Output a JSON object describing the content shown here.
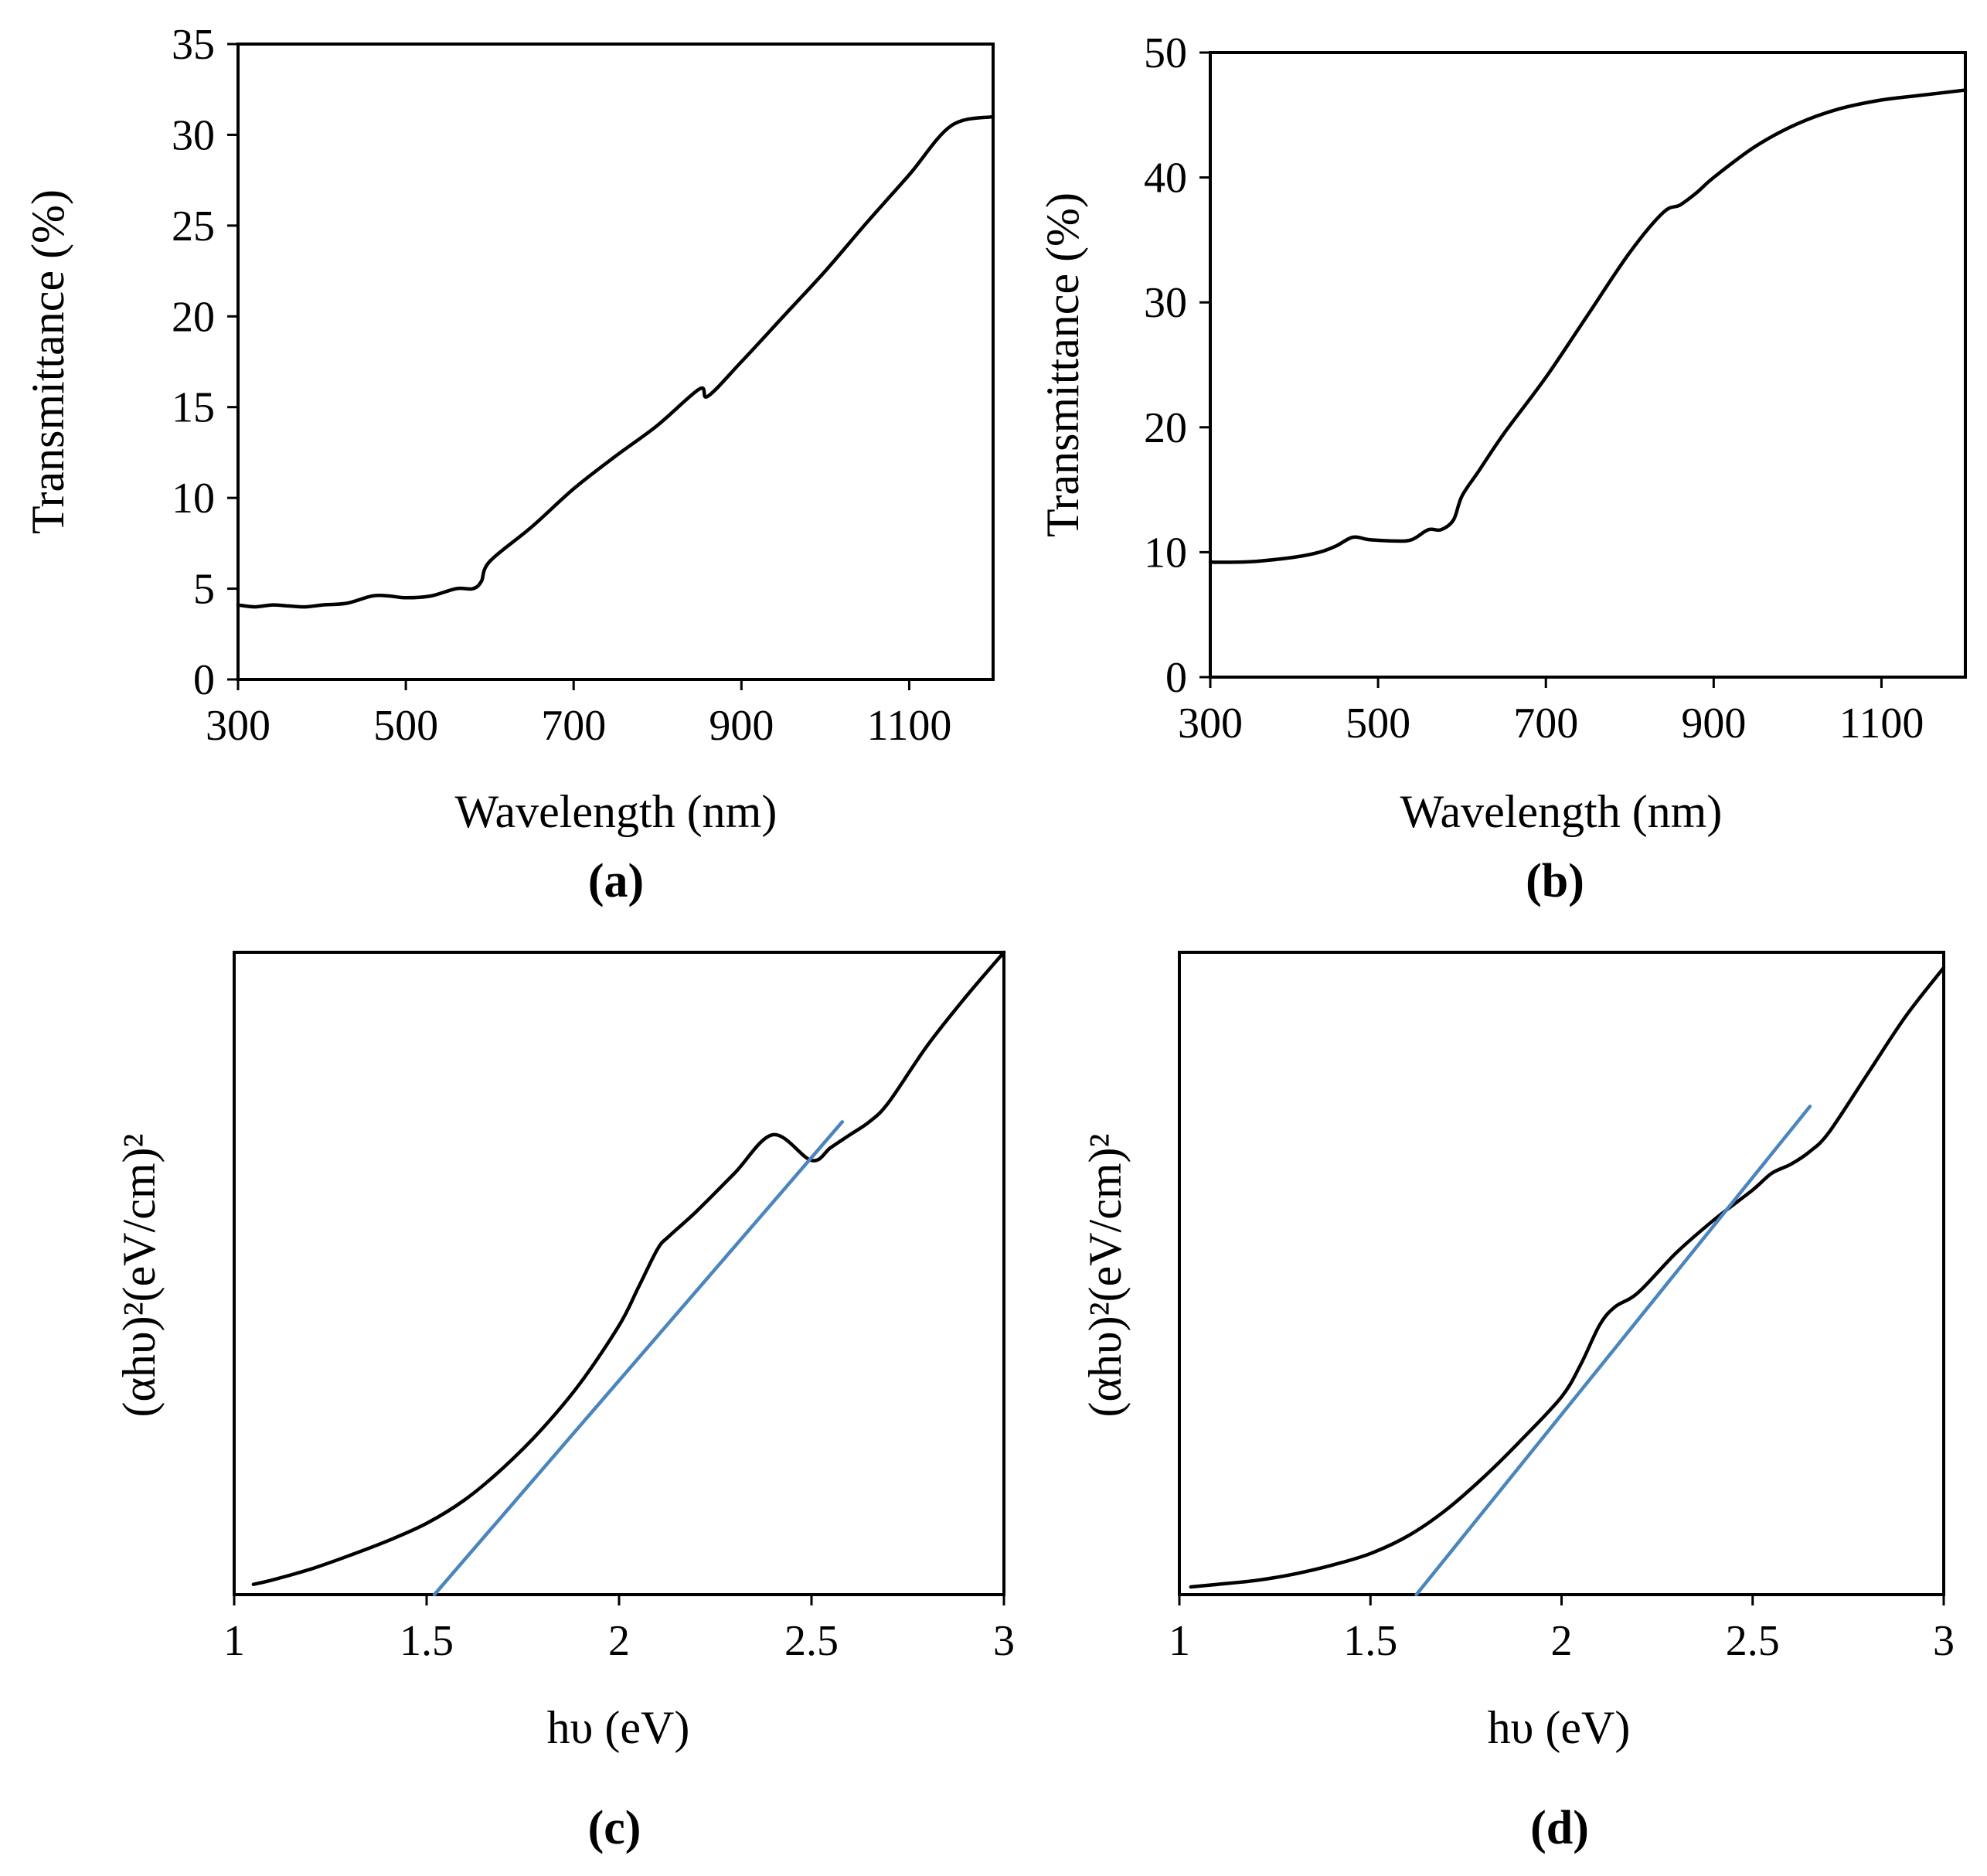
{
  "chart_data": [
    {
      "panel": "a",
      "panel_label": "(a)",
      "type": "line",
      "xlabel": "Wavelength (nm)",
      "ylabel": "Transmittance (%)",
      "xlim": [
        300,
        1200
      ],
      "ylim": [
        0,
        35
      ],
      "xticks": [
        300,
        500,
        700,
        900,
        1100
      ],
      "yticks": [
        0,
        5,
        10,
        15,
        20,
        25,
        30,
        35
      ],
      "series": [
        {
          "name": "Transmittance",
          "color": "#000000",
          "x": [
            300,
            320,
            340,
            360,
            380,
            400,
            430,
            460,
            480,
            500,
            530,
            560,
            580,
            590,
            600,
            650,
            700,
            750,
            800,
            850,
            860,
            900,
            950,
            1000,
            1050,
            1100,
            1150,
            1200
          ],
          "y": [
            4.1,
            4.0,
            4.1,
            4.05,
            4.0,
            4.1,
            4.2,
            4.6,
            4.6,
            4.5,
            4.6,
            5.0,
            5.0,
            5.4,
            6.5,
            8.4,
            10.5,
            12.3,
            14.0,
            16.0,
            15.6,
            17.5,
            20.0,
            22.5,
            25.2,
            27.8,
            30.5,
            31.0
          ]
        }
      ]
    },
    {
      "panel": "b",
      "panel_label": "(b)",
      "type": "line",
      "xlabel": "Wavelength (nm)",
      "ylabel": "Transmittance (%)",
      "xlim": [
        300,
        1200
      ],
      "ylim": [
        0,
        50
      ],
      "xticks": [
        300,
        500,
        700,
        900,
        1100
      ],
      "yticks": [
        0,
        10,
        20,
        30,
        40,
        50
      ],
      "series": [
        {
          "name": "Transmittance",
          "color": "#000000",
          "x": [
            300,
            330,
            360,
            400,
            430,
            450,
            470,
            490,
            520,
            540,
            560,
            575,
            590,
            600,
            620,
            650,
            700,
            750,
            800,
            840,
            860,
            880,
            900,
            950,
            1000,
            1050,
            1100,
            1150,
            1200
          ],
          "y": [
            9.2,
            9.2,
            9.3,
            9.6,
            10.0,
            10.5,
            11.2,
            11.0,
            10.9,
            11.0,
            11.8,
            11.8,
            12.6,
            14.5,
            16.5,
            19.5,
            24.0,
            29.0,
            34.0,
            37.2,
            37.8,
            38.8,
            40.0,
            42.5,
            44.3,
            45.5,
            46.2,
            46.6,
            47.0
          ]
        }
      ]
    },
    {
      "panel": "c",
      "panel_label": "(c)",
      "type": "line",
      "xlabel": "hυ (eV)",
      "ylabel": "(αhυ)²(eV/cm)²",
      "xlim": [
        1,
        3
      ],
      "ylim": [
        0,
        100
      ],
      "xticks": [
        1,
        1.5,
        2,
        2.5,
        3
      ],
      "xtick_labels": [
        "1",
        "1.5",
        "2",
        "2.5",
        "3"
      ],
      "series": [
        {
          "name": "(αhυ)²",
          "color": "#000000",
          "x": [
            1.05,
            1.1,
            1.2,
            1.3,
            1.4,
            1.5,
            1.6,
            1.7,
            1.8,
            1.9,
            2.0,
            2.05,
            2.1,
            2.13,
            2.2,
            2.3,
            2.4,
            2.5,
            2.55,
            2.6,
            2.65,
            2.7,
            2.8,
            2.9,
            3.0
          ],
          "y": [
            1.6,
            2.3,
            4.0,
            6.1,
            8.4,
            11.1,
            14.8,
            19.8,
            25.8,
            33.0,
            41.9,
            47.8,
            53.8,
            55.8,
            59.6,
            65.6,
            71.6,
            67.6,
            69.6,
            71.6,
            73.6,
            76.6,
            85.4,
            93.0,
            100.0
          ]
        },
        {
          "name": "linear fit",
          "color": "#4a86bd",
          "x": [
            1.52,
            2.58
          ],
          "y": [
            0,
            73.6
          ]
        }
      ]
    },
    {
      "panel": "d",
      "panel_label": "(d)",
      "type": "line",
      "xlabel": "hυ (eV)",
      "ylabel": "(αhυ)²(eV/cm)²",
      "xlim": [
        1,
        3
      ],
      "ylim": [
        0,
        100
      ],
      "xticks": [
        1,
        1.5,
        2,
        2.5,
        3
      ],
      "xtick_labels": [
        "1",
        "1.5",
        "2",
        "2.5",
        "3"
      ],
      "series": [
        {
          "name": "(αhυ)²",
          "color": "#000000",
          "x": [
            1.03,
            1.1,
            1.2,
            1.3,
            1.4,
            1.5,
            1.6,
            1.7,
            1.8,
            1.9,
            2.0,
            2.05,
            2.1,
            2.14,
            2.2,
            2.3,
            2.4,
            2.5,
            2.55,
            2.6,
            2.65,
            2.7,
            2.8,
            2.9,
            3.0
          ],
          "y": [
            1.2,
            1.6,
            2.2,
            3.2,
            4.6,
            6.4,
            9.2,
            13.3,
            18.5,
            24.4,
            30.8,
            35.8,
            42.0,
            44.8,
            47.0,
            53.2,
            58.4,
            63.0,
            65.6,
            67.0,
            69.0,
            72.0,
            81.0,
            90.0,
            97.6
          ]
        },
        {
          "name": "linear fit",
          "color": "#4a86bd",
          "x": [
            1.62,
            2.65
          ],
          "y": [
            0,
            76.0
          ]
        }
      ]
    }
  ]
}
